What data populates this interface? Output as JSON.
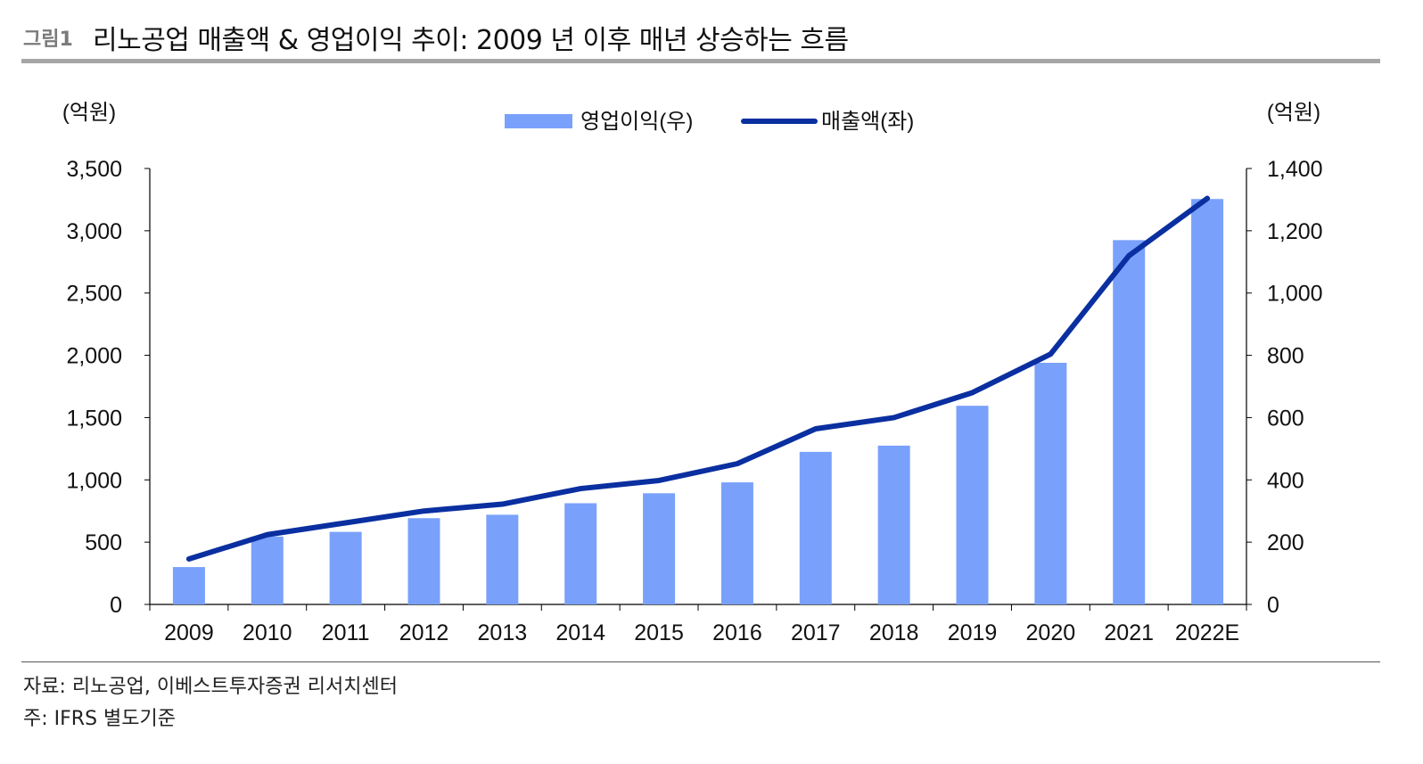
{
  "figure": {
    "label": "그림1",
    "title": "리노공업 매출액 & 영업이익 추이: 2009 년 이후 매년 상승하는 흐름"
  },
  "footer": {
    "source": "자료: 리노공업, 이베스트투자증권 리서치센터",
    "note": "주: IFRS 별도기준"
  },
  "chart_data": {
    "type": "bar",
    "categories": [
      "2009",
      "2010",
      "2011",
      "2012",
      "2013",
      "2014",
      "2015",
      "2016",
      "2017",
      "2018",
      "2019",
      "2020",
      "2021",
      "2022E"
    ],
    "series": [
      {
        "name": "영업이익(우)",
        "type": "bar",
        "axis": "right",
        "color": "#79a1fb",
        "values": [
          120,
          218,
          233,
          277,
          288,
          325,
          357,
          392,
          490,
          510,
          638,
          776,
          1170,
          1302
        ]
      },
      {
        "name": "매출액(좌)",
        "type": "line",
        "axis": "left",
        "color": "#0a2fa0",
        "values": [
          365,
          560,
          655,
          750,
          805,
          930,
          995,
          1130,
          1410,
          1500,
          1700,
          2010,
          2800,
          3260
        ]
      }
    ],
    "y_left": {
      "label": "(억원)",
      "ylim": [
        0,
        3500
      ],
      "ticks": [
        0,
        500,
        1000,
        1500,
        2000,
        2500,
        3000,
        3500
      ],
      "tick_labels": [
        "0",
        "500",
        "1,000",
        "1,500",
        "2,000",
        "2,500",
        "3,000",
        "3,500"
      ]
    },
    "y_right": {
      "label": "(억원)",
      "ylim": [
        0,
        1400
      ],
      "ticks": [
        0,
        200,
        400,
        600,
        800,
        1000,
        1200,
        1400
      ],
      "tick_labels": [
        "0",
        "200",
        "400",
        "600",
        "800",
        "1,000",
        "1,200",
        "1,400"
      ]
    },
    "legend_position": "top-center",
    "grid": false
  }
}
